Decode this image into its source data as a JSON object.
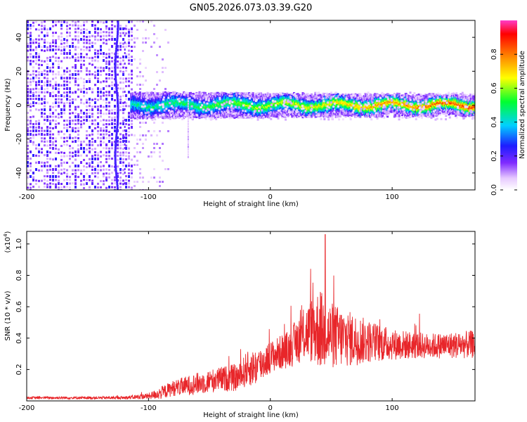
{
  "title": "GN05.2026.073.03.39.G20",
  "chart_data": [
    {
      "type": "heatmap",
      "xlabel": "Height of straight line (km)",
      "ylabel": "Frequency (Hz)",
      "xlim": [
        -200,
        168
      ],
      "ylim": [
        -50,
        50
      ],
      "xticks": [
        -200,
        -100,
        0,
        100
      ],
      "xtick_labels": [
        "-200",
        "-100",
        "0",
        "100"
      ],
      "yticks": [
        -40,
        -20,
        0,
        20,
        40
      ],
      "ytick_labels": [
        "-40",
        "-20",
        "0",
        "20",
        "40"
      ],
      "colorbar": {
        "label": "Normalized spectral amplitude",
        "range": [
          0,
          1
        ],
        "ticks": [
          0,
          0.2,
          0.4,
          0.6,
          0.8
        ],
        "tick_labels": [
          "0.0",
          "0.2",
          "0.4",
          "0.6",
          "0.8"
        ]
      }
    },
    {
      "type": "line",
      "xlabel": "Height of straight line (km)",
      "ylabel": "SNR (10 * v/v)",
      "scale_label": "(x10",
      "scale_exp": "4",
      "scale_close": ")",
      "xlim": [
        -200,
        168
      ],
      "ylim": [
        0,
        1.08
      ],
      "xticks": [
        -200,
        -100,
        0,
        100
      ],
      "xtick_labels": [
        "-200",
        "-100",
        "0",
        "100"
      ],
      "yticks": [
        0.2,
        0.4,
        0.6,
        0.8,
        1.0
      ],
      "ytick_labels": [
        "0.2",
        "0.4",
        "0.6",
        "0.8",
        "1.0"
      ],
      "color": "#e8262a",
      "envelope": {
        "x": [
          -200,
          -160,
          -120,
          -100,
          -90,
          -80,
          -60,
          -40,
          -25,
          -20,
          -10,
          0,
          15,
          30,
          40,
          48,
          60,
          80,
          100,
          130,
          168
        ],
        "mean": [
          0.02,
          0.02,
          0.02,
          0.03,
          0.05,
          0.08,
          0.11,
          0.14,
          0.15,
          0.2,
          0.22,
          0.28,
          0.33,
          0.44,
          0.46,
          0.42,
          0.4,
          0.38,
          0.36,
          0.35,
          0.36
        ],
        "spread": [
          0.008,
          0.008,
          0.01,
          0.02,
          0.04,
          0.05,
          0.07,
          0.08,
          0.09,
          0.11,
          0.12,
          0.1,
          0.12,
          0.18,
          0.26,
          0.22,
          0.19,
          0.14,
          0.1,
          0.08,
          0.09
        ],
        "peak": {
          "x": 45,
          "y": 1.06
        }
      }
    }
  ]
}
